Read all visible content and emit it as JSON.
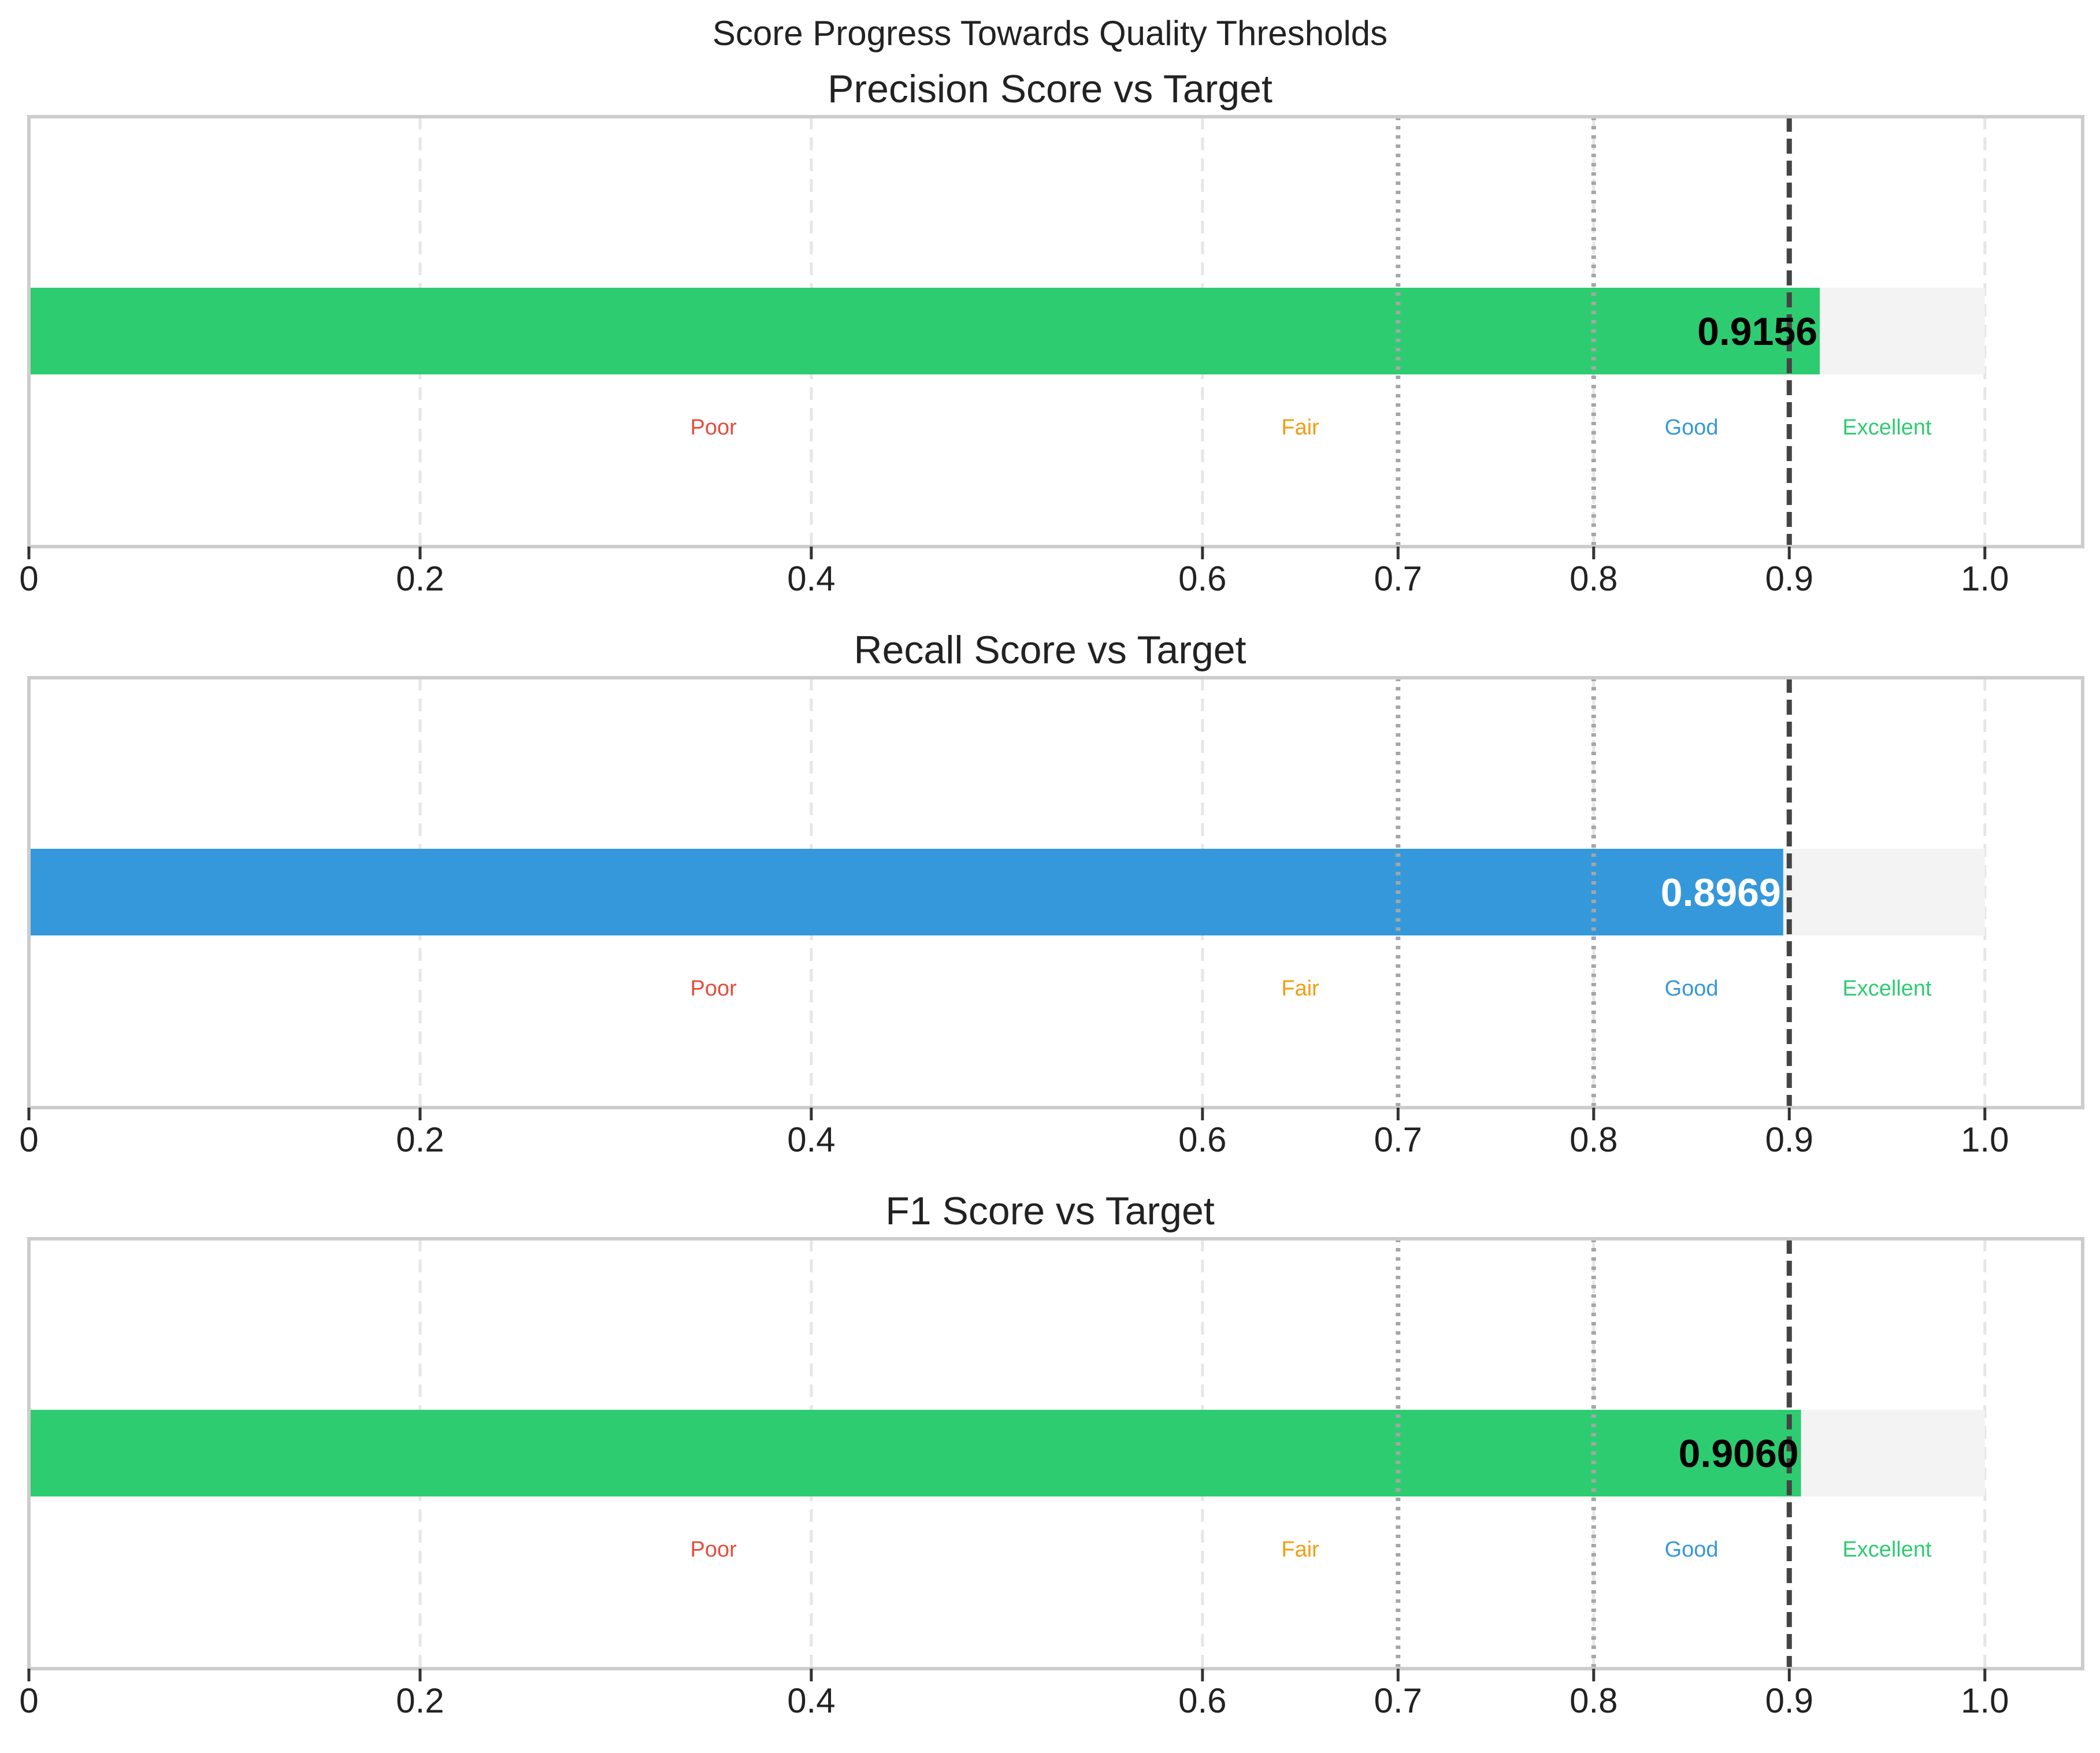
{
  "figure": {
    "title": "Score Progress Towards Quality Thresholds"
  },
  "chart_data": [
    {
      "type": "bar",
      "orientation": "horizontal",
      "title": "Precision Score vs Target",
      "value": 0.9156,
      "value_label": "0.9156",
      "bar_color": "#2ecc71",
      "value_label_color": "#000000",
      "background_track_max": 1.0,
      "target": 0.9,
      "xlim": [
        0,
        1.05
      ],
      "x_ticks": [
        0,
        0.2,
        0.4,
        0.6,
        0.7,
        0.8,
        0.9,
        1.0
      ],
      "x_tick_labels": [
        "0",
        "0.2",
        "0.4",
        "0.6",
        "0.7",
        "0.8",
        "0.9",
        "1.0"
      ],
      "grid": true,
      "threshold_lines": [
        0.7,
        0.8
      ],
      "zones": [
        {
          "label": "Poor",
          "center": 0.35,
          "color": "#e74c3c"
        },
        {
          "label": "Fair",
          "center": 0.65,
          "color": "#f39c12"
        },
        {
          "label": "Good",
          "center": 0.85,
          "color": "#3498db"
        },
        {
          "label": "Excellent",
          "center": 0.95,
          "color": "#2ecc71"
        }
      ]
    },
    {
      "type": "bar",
      "orientation": "horizontal",
      "title": "Recall Score vs Target",
      "value": 0.8969,
      "value_label": "0.8969",
      "bar_color": "#3498db",
      "value_label_color": "#ffffff",
      "background_track_max": 1.0,
      "target": 0.9,
      "xlim": [
        0,
        1.05
      ],
      "x_ticks": [
        0,
        0.2,
        0.4,
        0.6,
        0.7,
        0.8,
        0.9,
        1.0
      ],
      "x_tick_labels": [
        "0",
        "0.2",
        "0.4",
        "0.6",
        "0.7",
        "0.8",
        "0.9",
        "1.0"
      ],
      "grid": true,
      "threshold_lines": [
        0.7,
        0.8
      ],
      "zones": [
        {
          "label": "Poor",
          "center": 0.35,
          "color": "#e74c3c"
        },
        {
          "label": "Fair",
          "center": 0.65,
          "color": "#f39c12"
        },
        {
          "label": "Good",
          "center": 0.85,
          "color": "#3498db"
        },
        {
          "label": "Excellent",
          "center": 0.95,
          "color": "#2ecc71"
        }
      ]
    },
    {
      "type": "bar",
      "orientation": "horizontal",
      "title": "F1 Score vs Target",
      "value": 0.906,
      "value_label": "0.9060",
      "bar_color": "#2ecc71",
      "value_label_color": "#000000",
      "background_track_max": 1.0,
      "target": 0.9,
      "xlim": [
        0,
        1.05
      ],
      "x_ticks": [
        0,
        0.2,
        0.4,
        0.6,
        0.7,
        0.8,
        0.9,
        1.0
      ],
      "x_tick_labels": [
        "0",
        "0.2",
        "0.4",
        "0.6",
        "0.7",
        "0.8",
        "0.9",
        "1.0"
      ],
      "grid": true,
      "threshold_lines": [
        0.7,
        0.8
      ],
      "zones": [
        {
          "label": "Poor",
          "center": 0.35,
          "color": "#e74c3c"
        },
        {
          "label": "Fair",
          "center": 0.65,
          "color": "#f39c12"
        },
        {
          "label": "Good",
          "center": 0.85,
          "color": "#3498db"
        },
        {
          "label": "Excellent",
          "center": 0.95,
          "color": "#2ecc71"
        }
      ]
    }
  ]
}
